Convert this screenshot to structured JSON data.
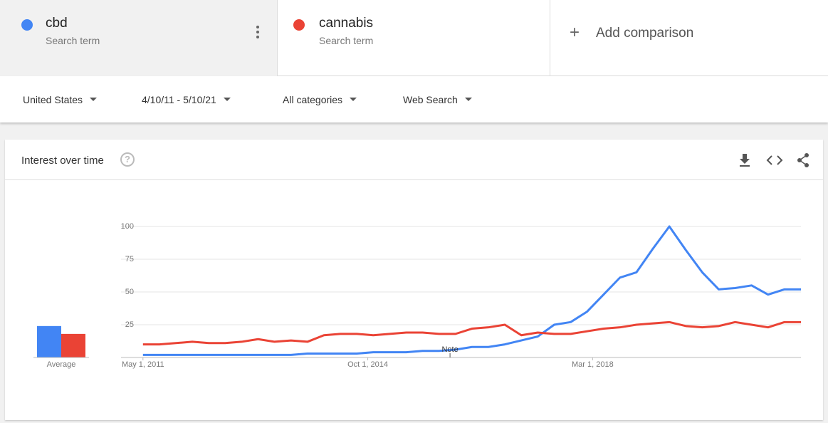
{
  "terms": [
    {
      "name": "cbd",
      "subtitle": "Search term"
    },
    {
      "name": "cannabis",
      "subtitle": "Search term"
    }
  ],
  "add_comparison": "Add comparison",
  "filters": [
    "United States",
    "4/10/11 - 5/10/21",
    "All categories",
    "Web Search"
  ],
  "card": {
    "title": "Interest over time"
  },
  "chart_data": {
    "type": "line",
    "x": [
      "2011-05-01",
      "2011-08-01",
      "2011-11-01",
      "2012-02-01",
      "2012-05-01",
      "2012-08-01",
      "2012-11-01",
      "2013-02-01",
      "2013-05-01",
      "2013-08-01",
      "2013-11-01",
      "2014-02-01",
      "2014-05-01",
      "2014-08-01",
      "2014-11-01",
      "2015-02-01",
      "2015-05-01",
      "2015-08-01",
      "2015-11-01",
      "2016-02-01",
      "2016-05-01",
      "2016-08-01",
      "2016-11-01",
      "2017-02-01",
      "2017-05-01",
      "2017-08-01",
      "2017-11-01",
      "2018-02-01",
      "2018-05-01",
      "2018-08-01",
      "2018-11-01",
      "2019-02-01",
      "2019-05-01",
      "2019-08-01",
      "2019-11-01",
      "2020-02-01",
      "2020-05-01",
      "2020-08-01",
      "2020-11-01",
      "2021-02-01",
      "2021-05-01"
    ],
    "series": [
      {
        "name": "cbd",
        "color": "#4285f4",
        "average": 24,
        "values": [
          2,
          2,
          2,
          2,
          2,
          2,
          2,
          2,
          2,
          2,
          3,
          3,
          3,
          3,
          4,
          4,
          4,
          5,
          5,
          6,
          8,
          8,
          10,
          13,
          16,
          25,
          27,
          35,
          48,
          61,
          65,
          83,
          100,
          82,
          65,
          52,
          53,
          55,
          48,
          52,
          52
        ]
      },
      {
        "name": "cannabis",
        "color": "#ea4335",
        "average": 18,
        "values": [
          10,
          10,
          11,
          12,
          11,
          11,
          12,
          14,
          12,
          13,
          12,
          17,
          18,
          18,
          17,
          18,
          19,
          19,
          18,
          18,
          22,
          23,
          25,
          17,
          19,
          18,
          18,
          20,
          22,
          23,
          25,
          26,
          27,
          24,
          23,
          24,
          27,
          25,
          23,
          27,
          27
        ]
      }
    ],
    "average_label": "Average",
    "annotation": {
      "x": "2016-01-01",
      "text": "Note"
    },
    "xlim": [
      "2011-01-01",
      "2021-05-01"
    ],
    "xticks": [
      {
        "value": "2011-05-01",
        "label": "May 1, 2011"
      },
      {
        "value": "2014-10-01",
        "label": "Oct 1, 2014"
      },
      {
        "value": "2018-03-01",
        "label": "Mar 1, 2018"
      }
    ],
    "ylim": [
      0,
      100
    ],
    "yticks": [
      25,
      50,
      75,
      100
    ],
    "grid": true
  }
}
